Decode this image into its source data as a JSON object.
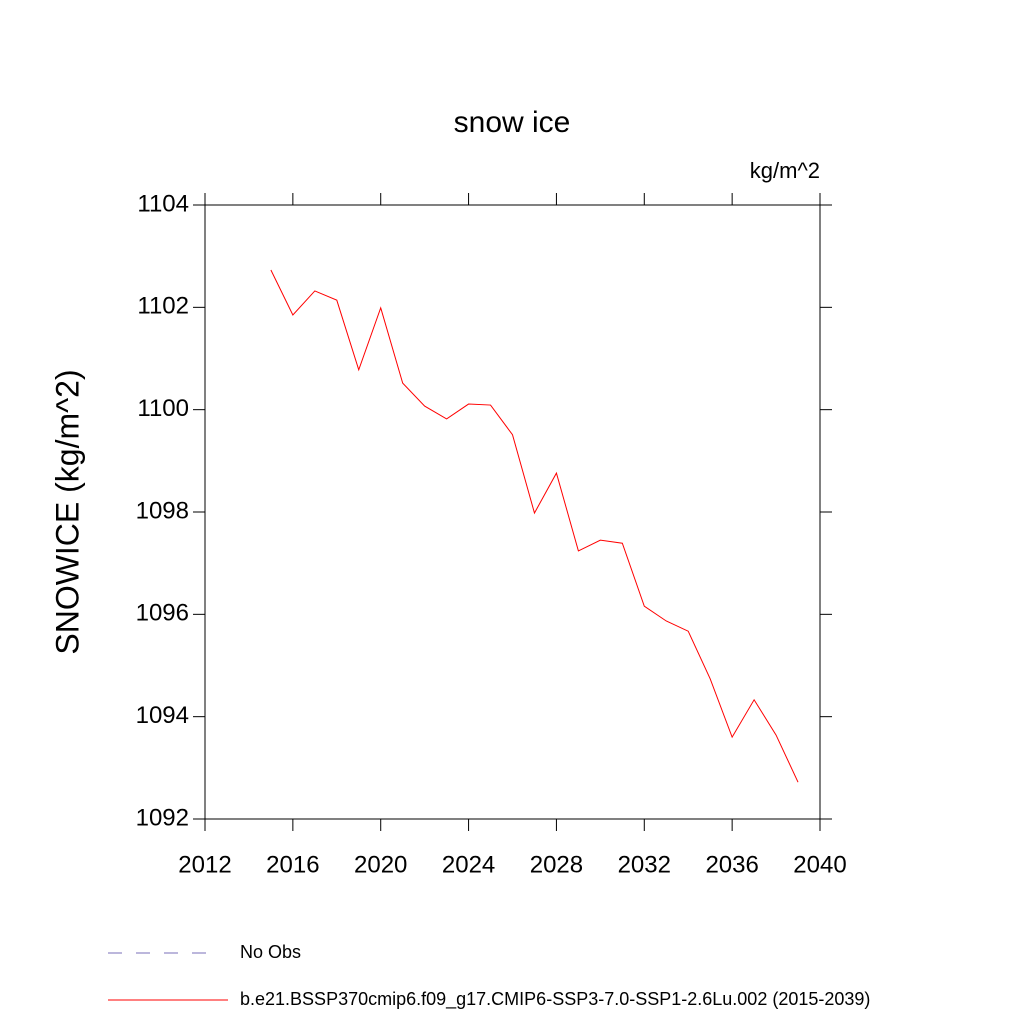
{
  "chart_data": {
    "type": "line",
    "title": "snow ice",
    "units": "kg/m^2",
    "y_label": "SNOWICE  (kg/m^2)",
    "x": [
      2015,
      2016,
      2017,
      2018,
      2019,
      2020,
      2021,
      2022,
      2023,
      2024,
      2025,
      2026,
      2027,
      2028,
      2029,
      2030,
      2031,
      2032,
      2033,
      2034,
      2035,
      2036,
      2037,
      2038,
      2039
    ],
    "series": [
      {
        "name": "b.e21.BSSP370cmip6.f09_g17.CMIP6-SSP3-7.0-SSP1-2.6Lu.002 (2015-2039)",
        "color": "#ff0000",
        "values": [
          1102.73,
          1101.85,
          1102.32,
          1102.14,
          1100.78,
          1101.99,
          1100.52,
          1100.07,
          1099.82,
          1100.11,
          1100.09,
          1099.51,
          1097.98,
          1098.76,
          1097.24,
          1097.45,
          1097.39,
          1096.16,
          1095.87,
          1095.67,
          1094.74,
          1093.6,
          1094.33,
          1093.64,
          1092.72
        ]
      }
    ],
    "legend_extra": [
      {
        "name": "No Obs",
        "color": "#7a6fb8"
      }
    ],
    "xlim": [
      2012,
      2040
    ],
    "xticks": [
      2012,
      2016,
      2020,
      2024,
      2028,
      2032,
      2036,
      2040
    ],
    "ylim": [
      1092,
      1104
    ],
    "yticks": [
      1092,
      1094,
      1096,
      1098,
      1100,
      1102,
      1104
    ]
  }
}
